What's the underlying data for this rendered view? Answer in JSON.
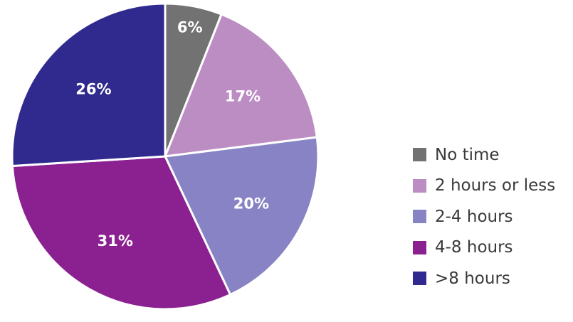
{
  "chart_data": {
    "type": "pie",
    "categories": [
      "No time",
      "2 hours or less",
      "2-4 hours",
      "4-8 hours",
      ">8 hours"
    ],
    "values": [
      6,
      17,
      20,
      31,
      26
    ],
    "value_labels": [
      "6%",
      "17%",
      "20%",
      "31%",
      "26%"
    ],
    "colors": [
      "#717271",
      "#bb8dc3",
      "#8883c4",
      "#8b2190",
      "#302a8e"
    ],
    "legend_placement": "right",
    "start_angle": "12 o'clock",
    "direction": "clockwise"
  }
}
